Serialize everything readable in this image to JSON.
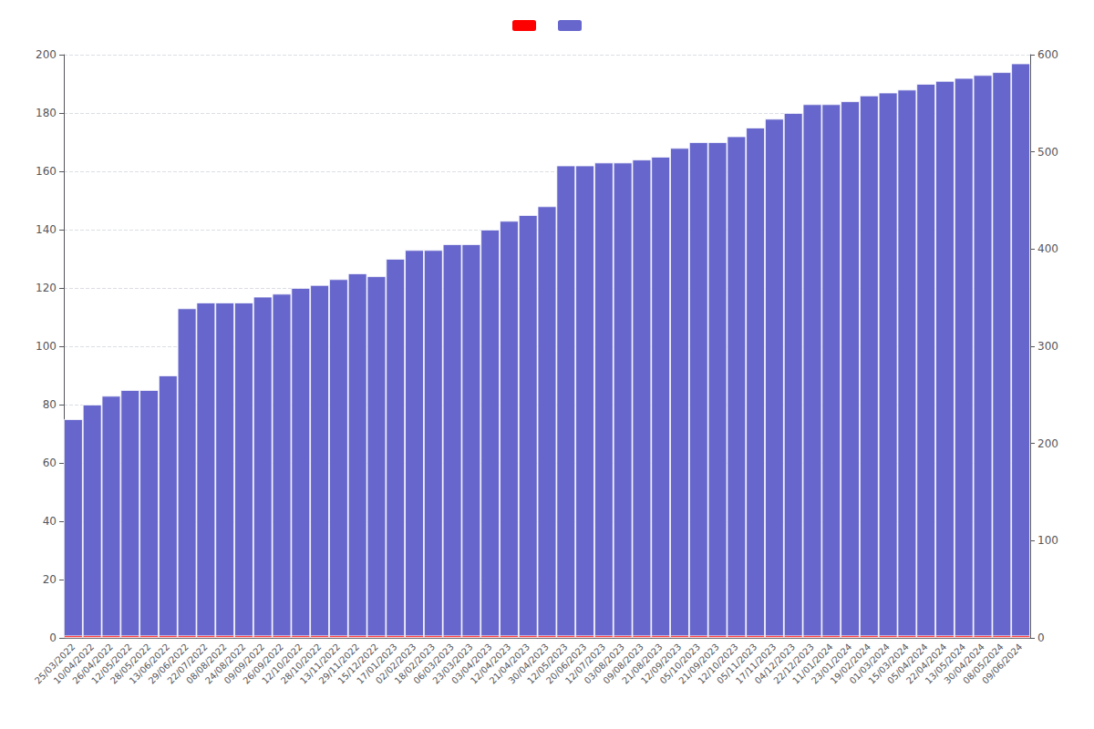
{
  "chart_data": {
    "type": "bar",
    "categories": [
      "25/03/2022",
      "10/04/2022",
      "26/04/2022",
      "12/05/2022",
      "28/05/2022",
      "13/06/2022",
      "29/06/2022",
      "22/07/2022",
      "08/08/2022",
      "24/08/2022",
      "09/09/2022",
      "26/09/2022",
      "12/10/2022",
      "28/10/2022",
      "13/11/2022",
      "29/11/2022",
      "15/12/2022",
      "17/01/2023",
      "02/02/2023",
      "18/02/2023",
      "06/03/2023",
      "23/03/2023",
      "03/04/2023",
      "12/04/2023",
      "21/04/2023",
      "30/04/2023",
      "12/05/2023",
      "20/06/2023",
      "12/07/2023",
      "03/08/2023",
      "09/08/2023",
      "21/08/2023",
      "12/09/2023",
      "05/10/2023",
      "21/09/2023",
      "12/10/2023",
      "05/11/2023",
      "17/11/2023",
      "04/12/2023",
      "22/12/2023",
      "11/01/2024",
      "23/01/2024",
      "19/02/2024",
      "01/03/2024",
      "15/03/2024",
      "05/04/2024",
      "22/04/2024",
      "13/05/2024",
      "30/04/2024",
      "08/05/2024",
      "09/06/2024"
    ],
    "series": [
      {
        "color": "#6666cc",
        "values": [
          75,
          80,
          83,
          85,
          85,
          90,
          113,
          115,
          115,
          115,
          117,
          118,
          120,
          121,
          123,
          125,
          124,
          130,
          133,
          133,
          135,
          135,
          140,
          143,
          145,
          148,
          162,
          162,
          163,
          163,
          164,
          165,
          168,
          170,
          170,
          172,
          175,
          178,
          180,
          183,
          183,
          184,
          186,
          187,
          188,
          190,
          191,
          192,
          193,
          194,
          197
        ]
      },
      {
        "color": "#ff0000",
        "values": [
          0.8,
          0.8,
          0.8,
          0.8,
          0.8,
          0.8,
          0.8,
          0.8,
          0.8,
          0.8,
          0.8,
          0.8,
          0.8,
          0.8,
          0.8,
          0.8,
          0.8,
          0.8,
          0.8,
          0.8,
          0.8,
          0.8,
          0.8,
          0.8,
          0.8,
          0.8,
          0.8,
          0.8,
          0.8,
          0.8,
          0.8,
          0.8,
          0.8,
          0.8,
          0.8,
          0.8,
          0.8,
          0.8,
          0.8,
          0.8,
          0.8,
          0.8,
          0.8,
          0.8,
          0.8,
          0.8,
          0.8,
          0.8,
          0.8,
          0.8,
          0.8
        ]
      }
    ],
    "ylim": [
      0,
      200
    ],
    "yticks": [
      0,
      20,
      40,
      60,
      80,
      100,
      120,
      140,
      160,
      180,
      200
    ],
    "y2lim": [
      0,
      600
    ],
    "y2ticks": [
      0,
      100,
      200,
      300,
      400,
      500,
      600
    ],
    "grid": true,
    "legend": "upper center"
  }
}
